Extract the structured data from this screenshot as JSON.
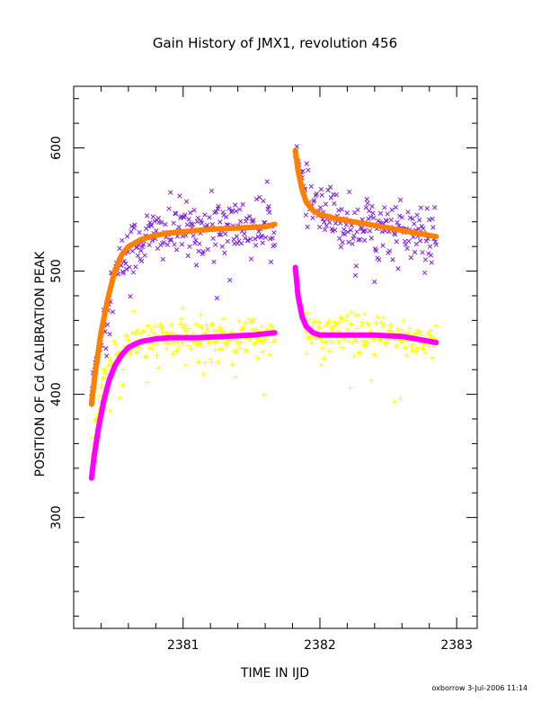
{
  "chart_data": {
    "type": "scatter",
    "title": "Gain History of JMX1, revolution 456",
    "xlabel": "TIME IN IJD",
    "ylabel": "POSITION OF Cd CALIBRATION PEAK",
    "xlim": [
      2380.2,
      2383.15
    ],
    "ylim": [
      210,
      650
    ],
    "x_major_ticks": [
      2381,
      2382,
      2383
    ],
    "x_minor_step": 0.2,
    "y_major_ticks": [
      300,
      400,
      500,
      600
    ],
    "y_minor_step": 20,
    "grid": false,
    "legend": "none",
    "segments": [
      [
        2380.33,
        2381.67
      ],
      [
        2381.82,
        2382.85
      ]
    ],
    "series": [
      {
        "marker": "x",
        "color": "#7f1fd6",
        "scatter_sd": 12,
        "x": [
          2380.33,
          2380.36,
          2380.4,
          2380.45,
          2380.5,
          2380.6,
          2380.75,
          2380.9,
          2381.1,
          2381.3,
          2381.5,
          2381.67,
          2381.82,
          2381.85,
          2381.9,
          2382.0,
          2382.2,
          2382.5,
          2382.85
        ],
        "y": [
          400,
          425,
          448,
          475,
          495,
          517,
          528,
          532,
          534,
          535,
          536,
          537,
          603,
          580,
          560,
          545,
          540,
          535,
          528
        ]
      },
      {
        "marker": "line",
        "color": "#ff7f00",
        "x": [
          2380.33,
          2380.36,
          2380.4,
          2380.45,
          2380.5,
          2380.55,
          2380.6,
          2380.7,
          2380.8,
          2380.9,
          2381.0,
          2381.2,
          2381.4,
          2381.6,
          2381.67,
          2381.82,
          2381.84,
          2381.87,
          2381.9,
          2381.95,
          2382.0,
          2382.1,
          2382.2,
          2382.35,
          2382.5,
          2382.65,
          2382.85
        ],
        "y": [
          392,
          420,
          450,
          478,
          500,
          513,
          520,
          526,
          529,
          531,
          532,
          534,
          535,
          536,
          538,
          598,
          582,
          566,
          556,
          549,
          546,
          543,
          541,
          538,
          535,
          532,
          528
        ]
      },
      {
        "marker": "+",
        "color": "#ffff00",
        "scatter_sd": 8,
        "x": [
          2380.33,
          2380.36,
          2380.4,
          2380.45,
          2380.5,
          2380.6,
          2380.7,
          2380.8,
          2381.0,
          2381.2,
          2381.4,
          2381.67,
          2381.82,
          2381.85,
          2381.9,
          2382.0,
          2382.2,
          2382.5,
          2382.85
        ],
        "y": [
          340,
          375,
          400,
          418,
          430,
          440,
          443,
          444,
          445,
          446,
          447,
          449,
          500,
          470,
          455,
          449,
          448,
          447,
          443
        ]
      },
      {
        "marker": "line",
        "color": "#ff00ff",
        "x": [
          2380.33,
          2380.35,
          2380.38,
          2380.42,
          2380.46,
          2380.5,
          2380.55,
          2380.6,
          2380.65,
          2380.7,
          2380.8,
          2380.9,
          2381.1,
          2381.3,
          2381.5,
          2381.67,
          2381.82,
          2381.84,
          2381.87,
          2381.9,
          2381.95,
          2382.0,
          2382.1,
          2382.2,
          2382.4,
          2382.6,
          2382.85
        ],
        "y": [
          332,
          350,
          372,
          395,
          412,
          423,
          432,
          438,
          441,
          443,
          445,
          446,
          446,
          447,
          448,
          450,
          503,
          480,
          463,
          455,
          450,
          448,
          448,
          448,
          448,
          447,
          442
        ]
      }
    ]
  },
  "footer": "oxborrow  3-Jul-2006 11:14"
}
